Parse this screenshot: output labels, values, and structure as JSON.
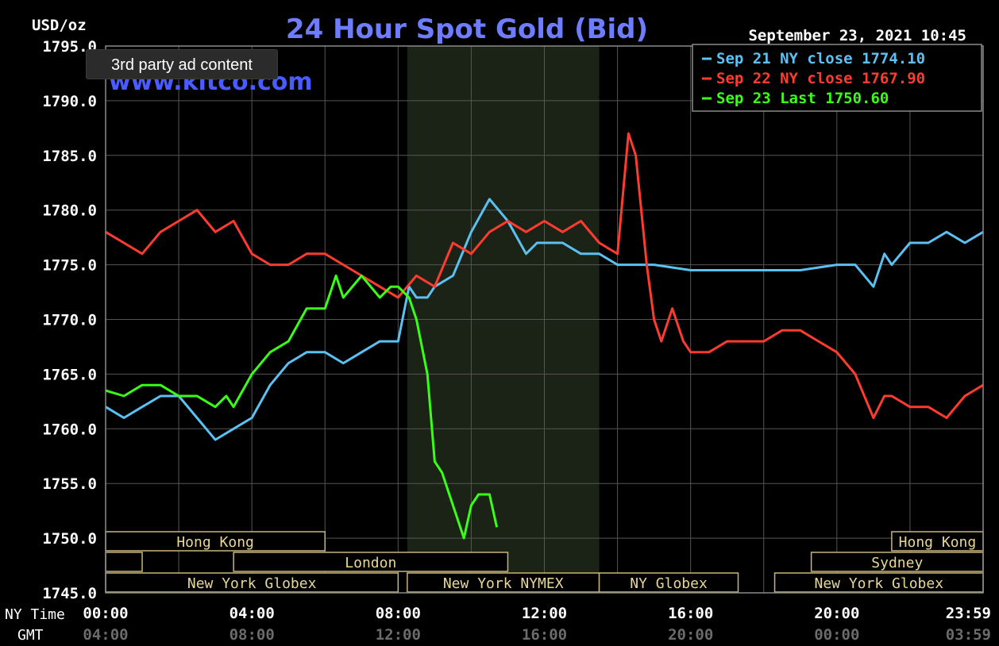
{
  "chart_data": {
    "type": "line",
    "title": "24 Hour Spot Gold (Bid)",
    "watermark": "www.kitco.com",
    "timestamp": "September 23, 2021 10:45",
    "y_unit_label": "USD/oz",
    "ylim": [
      1745.0,
      1795.0
    ],
    "y_ticks": [
      "1745.0",
      "1750.0",
      "1755.0",
      "1760.0",
      "1765.0",
      "1770.0",
      "1775.0",
      "1780.0",
      "1785.0",
      "1790.0",
      "1795.0"
    ],
    "x_row_labels": [
      "NY Time",
      "GMT"
    ],
    "x_ticks_ny": [
      "00:00",
      "04:00",
      "08:00",
      "12:00",
      "16:00",
      "20:00",
      "23:59"
    ],
    "x_ticks_gmt": [
      "04:00",
      "08:00",
      "12:00",
      "16:00",
      "20:00",
      "00:00",
      "03:59"
    ],
    "x_unit": "hours (NY time)",
    "xlim": [
      0,
      24
    ],
    "grid": true,
    "legend_position": "top-right",
    "series": [
      {
        "name": "Sep 21 NY close 1774.10",
        "color": "#5bc0f2",
        "x": [
          0,
          0.5,
          1,
          1.5,
          2,
          2.5,
          3,
          3.5,
          4,
          4.5,
          5,
          5.5,
          6,
          6.5,
          7,
          7.5,
          8,
          8.3,
          8.5,
          8.8,
          9,
          9.5,
          10,
          10.5,
          11,
          11.5,
          11.8,
          12,
          12.5,
          13,
          13.5,
          14,
          14.5,
          15,
          16,
          17,
          18,
          19,
          20,
          20.5,
          21,
          21.3,
          21.5,
          22,
          22.5,
          23,
          23.5,
          24
        ],
        "y": [
          1762,
          1761,
          1762,
          1763,
          1763,
          1761,
          1759,
          1760,
          1761,
          1764,
          1766,
          1767,
          1767,
          1766,
          1767,
          1768,
          1768,
          1773,
          1772,
          1772,
          1773,
          1774,
          1778,
          1781,
          1779,
          1776,
          1777,
          1777,
          1777,
          1776,
          1776,
          1775,
          1775,
          1775,
          1774.5,
          1774.5,
          1774.5,
          1774.5,
          1775,
          1775,
          1773,
          1776,
          1775,
          1777,
          1777,
          1778,
          1777,
          1778
        ]
      },
      {
        "name": "Sep 22 NY close 1767.90",
        "color": "#ff3b30",
        "x": [
          0,
          0.5,
          1,
          1.5,
          2,
          2.5,
          3,
          3.5,
          4,
          4.5,
          5,
          5.5,
          6,
          6.5,
          7,
          7.5,
          8,
          8.5,
          9,
          9.5,
          10,
          10.5,
          11,
          11.5,
          12,
          12.5,
          13,
          13.5,
          14,
          14.3,
          14.5,
          14.8,
          15,
          15.2,
          15.5,
          15.8,
          16,
          16.5,
          17,
          17.5,
          18,
          18.5,
          19,
          19.5,
          20,
          20.5,
          21,
          21.3,
          21.5,
          22,
          22.5,
          23,
          23.5,
          24
        ],
        "y": [
          1778,
          1777,
          1776,
          1778,
          1779,
          1780,
          1778,
          1779,
          1776,
          1775,
          1775,
          1776,
          1776,
          1775,
          1774,
          1773,
          1772,
          1774,
          1773,
          1777,
          1776,
          1778,
          1779,
          1778,
          1779,
          1778,
          1779,
          1777,
          1776,
          1787,
          1785,
          1775,
          1770,
          1768,
          1771,
          1768,
          1767,
          1767,
          1768,
          1768,
          1768,
          1769,
          1769,
          1768,
          1767,
          1765,
          1761,
          1763,
          1763,
          1762,
          1762,
          1761,
          1763,
          1764
        ]
      },
      {
        "name": "Sep 23 Last 1750.60",
        "color": "#39ff14",
        "x": [
          0,
          0.5,
          1,
          1.5,
          2,
          2.5,
          3,
          3.3,
          3.5,
          4,
          4.5,
          5,
          5.5,
          6,
          6.3,
          6.5,
          7,
          7.5,
          7.8,
          8,
          8.3,
          8.5,
          8.8,
          9,
          9.2,
          9.5,
          9.8,
          10,
          10.2,
          10.5,
          10.7
        ],
        "y": [
          1763.5,
          1763,
          1764,
          1764,
          1763,
          1763,
          1762,
          1763,
          1762,
          1765,
          1767,
          1768,
          1771,
          1771,
          1774,
          1772,
          1774,
          1772,
          1773,
          1773,
          1772,
          1770,
          1765,
          1757,
          1756,
          1753,
          1750,
          1753,
          1754,
          1754,
          1751
        ]
      }
    ],
    "session_bars": [
      {
        "label": "Hong Kong"
      },
      {
        "label": "London"
      },
      {
        "label": "New York Globex"
      },
      {
        "label": "New York NYMEX"
      },
      {
        "label": "NY Globex"
      },
      {
        "label": "Hong Kong"
      },
      {
        "label": "Sydney"
      },
      {
        "label": "New York Globex"
      }
    ]
  },
  "overlay": {
    "ad_badge": "3rd party ad content"
  }
}
